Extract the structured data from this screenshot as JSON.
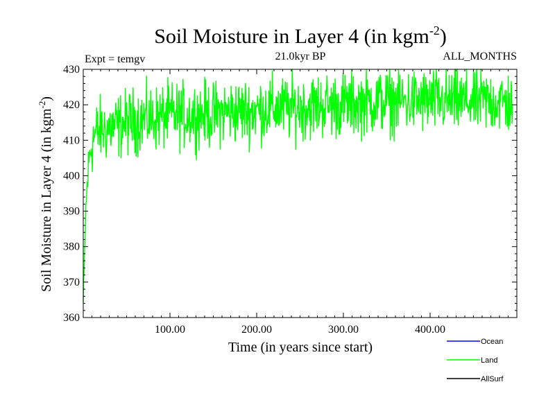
{
  "chart_data": {
    "type": "line",
    "title": "Soil Moisture in Layer 4 (in kgm",
    "title_superscript": "-2",
    "title_close": ")",
    "expt_label": "Expt = temgv",
    "period_label": "21.0kyr BP",
    "months_label": "ALL_MONTHS",
    "xlabel": "Time (in years since start)",
    "ylabel": "Soil Moisture in Layer 4 (in kgm",
    "ylabel_superscript": "-2",
    "ylabel_close": ")",
    "xlim": [
      0,
      500
    ],
    "ylim": [
      360,
      430
    ],
    "x_ticks": [
      100,
      200,
      300,
      400
    ],
    "x_tick_labels": [
      "100.00",
      "200.00",
      "300.00",
      "400.00"
    ],
    "y_ticks": [
      360,
      370,
      380,
      390,
      400,
      410,
      420,
      430
    ],
    "y_tick_labels": [
      "360",
      "370",
      "380",
      "390",
      "400",
      "410",
      "420",
      "430"
    ],
    "legend": [
      {
        "name": "Ocean",
        "color": "#0000ff"
      },
      {
        "name": "Land",
        "color": "#00ff00"
      },
      {
        "name": "AllSurf",
        "color": "#000000"
      }
    ],
    "series": [
      {
        "name": "Land",
        "color": "#00ff00",
        "x": [
          0,
          1,
          2,
          3,
          4,
          5,
          6,
          7,
          8,
          10,
          12,
          15,
          20,
          25,
          30,
          40,
          50,
          60,
          70,
          80,
          90,
          100,
          120,
          140,
          150,
          160,
          180,
          200,
          220,
          240,
          260,
          280,
          300,
          320,
          340,
          360,
          380,
          400,
          420,
          440,
          460,
          480,
          495
        ],
        "values": [
          364,
          372,
          382,
          390,
          395,
          399,
          402,
          405,
          407,
          409,
          411,
          412,
          413,
          413,
          413.5,
          414,
          415,
          415.5,
          416,
          416,
          416.5,
          417,
          417,
          417.5,
          417,
          418,
          418,
          418.5,
          419,
          419,
          419.5,
          420,
          420,
          420.5,
          421,
          421,
          421,
          421,
          421,
          421,
          421,
          421,
          420
        ],
        "noise_amplitude": 4.5
      }
    ]
  }
}
